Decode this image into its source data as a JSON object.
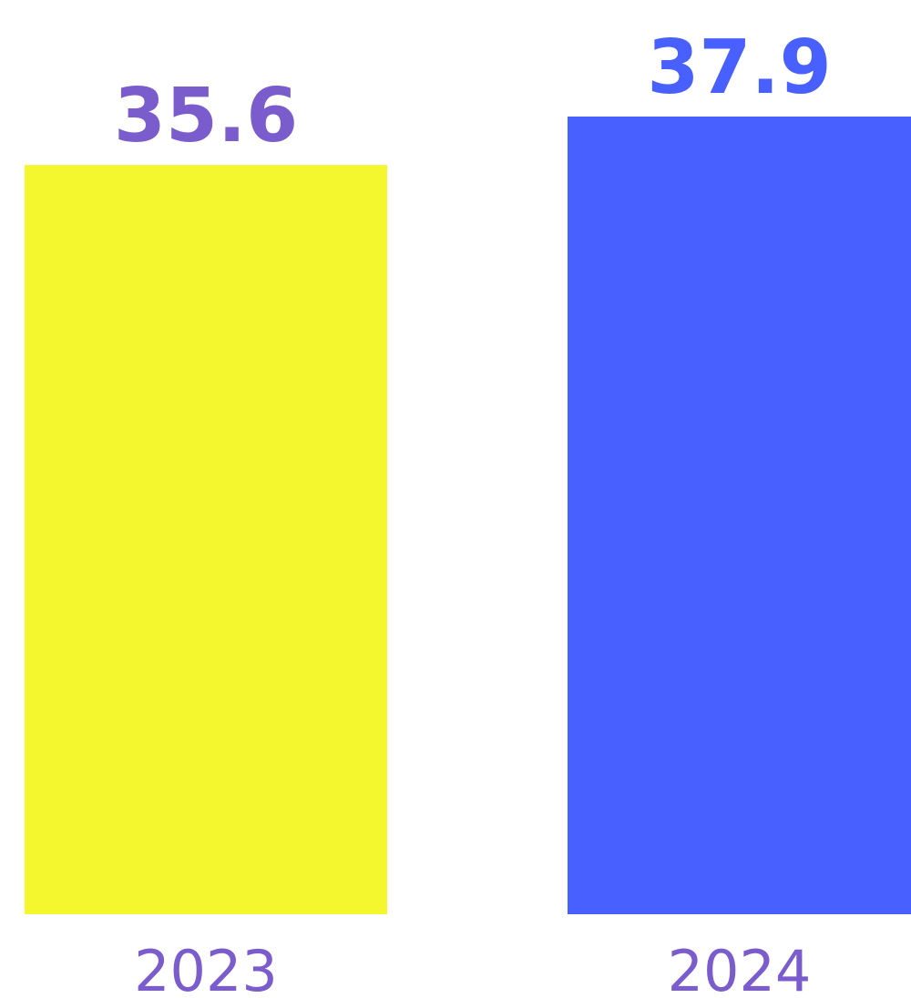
{
  "chart_data": {
    "type": "bar",
    "categories": [
      "2023",
      "2024"
    ],
    "values": [
      35.6,
      37.9
    ],
    "colors": [
      "#f4f72e",
      "#4860ff"
    ],
    "value_label_colors": [
      "#7b5ccc",
      "#4860ff"
    ],
    "category_label_color": "#7b5ccc"
  }
}
